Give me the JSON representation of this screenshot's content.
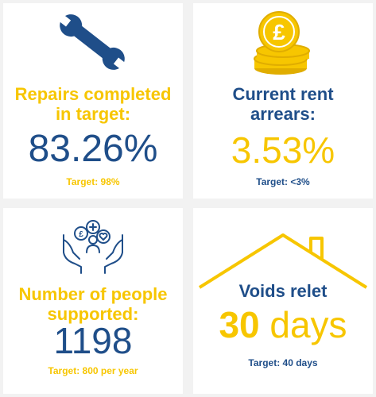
{
  "colors": {
    "yellow": "#f7c600",
    "blue": "#1f4e89",
    "background": "#f2f2f2"
  },
  "cards": [
    {
      "icon": "wrench-icon",
      "title_line1": "Repairs completed",
      "title_line2": "in target:",
      "value": "83.26%",
      "target": "Target: 98%"
    },
    {
      "icon": "pound-coins-icon",
      "title_line1": "Current rent",
      "title_line2": "arrears:",
      "value": "3.53%",
      "target": "Target: <3%"
    },
    {
      "icon": "hands-support-icon",
      "title_line1": "Number of people",
      "title_line2": "supported:",
      "value": "1198",
      "target": "Target: 800 per year"
    },
    {
      "icon": "house-roof-icon",
      "title_line1": "Voids relet",
      "value_number": "30",
      "value_unit": " days",
      "target": "Target: 40 days"
    }
  ]
}
